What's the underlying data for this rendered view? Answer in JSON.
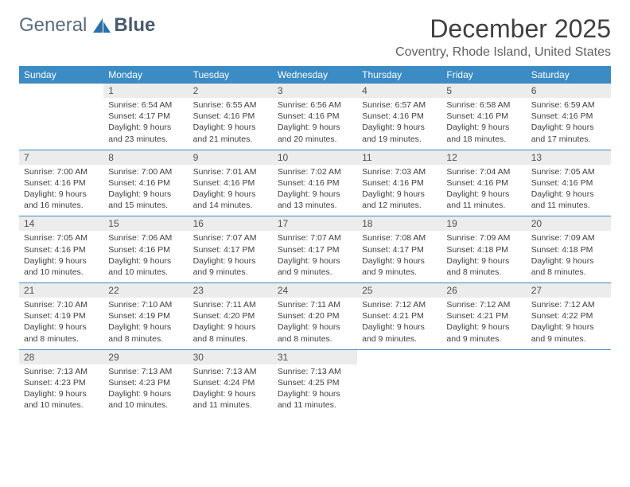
{
  "brand": {
    "part1": "General",
    "part2": "Blue"
  },
  "title": "December 2025",
  "location": "Coventry, Rhode Island, United States",
  "colors": {
    "header_bg": "#3b8bc4",
    "header_text": "#ffffff",
    "daynum_bg": "#ececec",
    "daynum_text": "#505050",
    "body_text": "#404040",
    "rule": "#3b8bc4",
    "logo_text": "#5a6b7a",
    "logo_accent": "#2b6fa8"
  },
  "day_names": [
    "Sunday",
    "Monday",
    "Tuesday",
    "Wednesday",
    "Thursday",
    "Friday",
    "Saturday"
  ],
  "weeks": [
    [
      null,
      {
        "n": "1",
        "sr": "6:54 AM",
        "ss": "4:17 PM",
        "dl": "9 hours and 23 minutes."
      },
      {
        "n": "2",
        "sr": "6:55 AM",
        "ss": "4:16 PM",
        "dl": "9 hours and 21 minutes."
      },
      {
        "n": "3",
        "sr": "6:56 AM",
        "ss": "4:16 PM",
        "dl": "9 hours and 20 minutes."
      },
      {
        "n": "4",
        "sr": "6:57 AM",
        "ss": "4:16 PM",
        "dl": "9 hours and 19 minutes."
      },
      {
        "n": "5",
        "sr": "6:58 AM",
        "ss": "4:16 PM",
        "dl": "9 hours and 18 minutes."
      },
      {
        "n": "6",
        "sr": "6:59 AM",
        "ss": "4:16 PM",
        "dl": "9 hours and 17 minutes."
      }
    ],
    [
      {
        "n": "7",
        "sr": "7:00 AM",
        "ss": "4:16 PM",
        "dl": "9 hours and 16 minutes."
      },
      {
        "n": "8",
        "sr": "7:00 AM",
        "ss": "4:16 PM",
        "dl": "9 hours and 15 minutes."
      },
      {
        "n": "9",
        "sr": "7:01 AM",
        "ss": "4:16 PM",
        "dl": "9 hours and 14 minutes."
      },
      {
        "n": "10",
        "sr": "7:02 AM",
        "ss": "4:16 PM",
        "dl": "9 hours and 13 minutes."
      },
      {
        "n": "11",
        "sr": "7:03 AM",
        "ss": "4:16 PM",
        "dl": "9 hours and 12 minutes."
      },
      {
        "n": "12",
        "sr": "7:04 AM",
        "ss": "4:16 PM",
        "dl": "9 hours and 11 minutes."
      },
      {
        "n": "13",
        "sr": "7:05 AM",
        "ss": "4:16 PM",
        "dl": "9 hours and 11 minutes."
      }
    ],
    [
      {
        "n": "14",
        "sr": "7:05 AM",
        "ss": "4:16 PM",
        "dl": "9 hours and 10 minutes."
      },
      {
        "n": "15",
        "sr": "7:06 AM",
        "ss": "4:16 PM",
        "dl": "9 hours and 10 minutes."
      },
      {
        "n": "16",
        "sr": "7:07 AM",
        "ss": "4:17 PM",
        "dl": "9 hours and 9 minutes."
      },
      {
        "n": "17",
        "sr": "7:07 AM",
        "ss": "4:17 PM",
        "dl": "9 hours and 9 minutes."
      },
      {
        "n": "18",
        "sr": "7:08 AM",
        "ss": "4:17 PM",
        "dl": "9 hours and 9 minutes."
      },
      {
        "n": "19",
        "sr": "7:09 AM",
        "ss": "4:18 PM",
        "dl": "9 hours and 8 minutes."
      },
      {
        "n": "20",
        "sr": "7:09 AM",
        "ss": "4:18 PM",
        "dl": "9 hours and 8 minutes."
      }
    ],
    [
      {
        "n": "21",
        "sr": "7:10 AM",
        "ss": "4:19 PM",
        "dl": "9 hours and 8 minutes."
      },
      {
        "n": "22",
        "sr": "7:10 AM",
        "ss": "4:19 PM",
        "dl": "9 hours and 8 minutes."
      },
      {
        "n": "23",
        "sr": "7:11 AM",
        "ss": "4:20 PM",
        "dl": "9 hours and 8 minutes."
      },
      {
        "n": "24",
        "sr": "7:11 AM",
        "ss": "4:20 PM",
        "dl": "9 hours and 8 minutes."
      },
      {
        "n": "25",
        "sr": "7:12 AM",
        "ss": "4:21 PM",
        "dl": "9 hours and 9 minutes."
      },
      {
        "n": "26",
        "sr": "7:12 AM",
        "ss": "4:21 PM",
        "dl": "9 hours and 9 minutes."
      },
      {
        "n": "27",
        "sr": "7:12 AM",
        "ss": "4:22 PM",
        "dl": "9 hours and 9 minutes."
      }
    ],
    [
      {
        "n": "28",
        "sr": "7:13 AM",
        "ss": "4:23 PM",
        "dl": "9 hours and 10 minutes."
      },
      {
        "n": "29",
        "sr": "7:13 AM",
        "ss": "4:23 PM",
        "dl": "9 hours and 10 minutes."
      },
      {
        "n": "30",
        "sr": "7:13 AM",
        "ss": "4:24 PM",
        "dl": "9 hours and 11 minutes."
      },
      {
        "n": "31",
        "sr": "7:13 AM",
        "ss": "4:25 PM",
        "dl": "9 hours and 11 minutes."
      },
      null,
      null,
      null
    ]
  ],
  "labels": {
    "sunrise": "Sunrise:",
    "sunset": "Sunset:",
    "daylight": "Daylight:"
  }
}
